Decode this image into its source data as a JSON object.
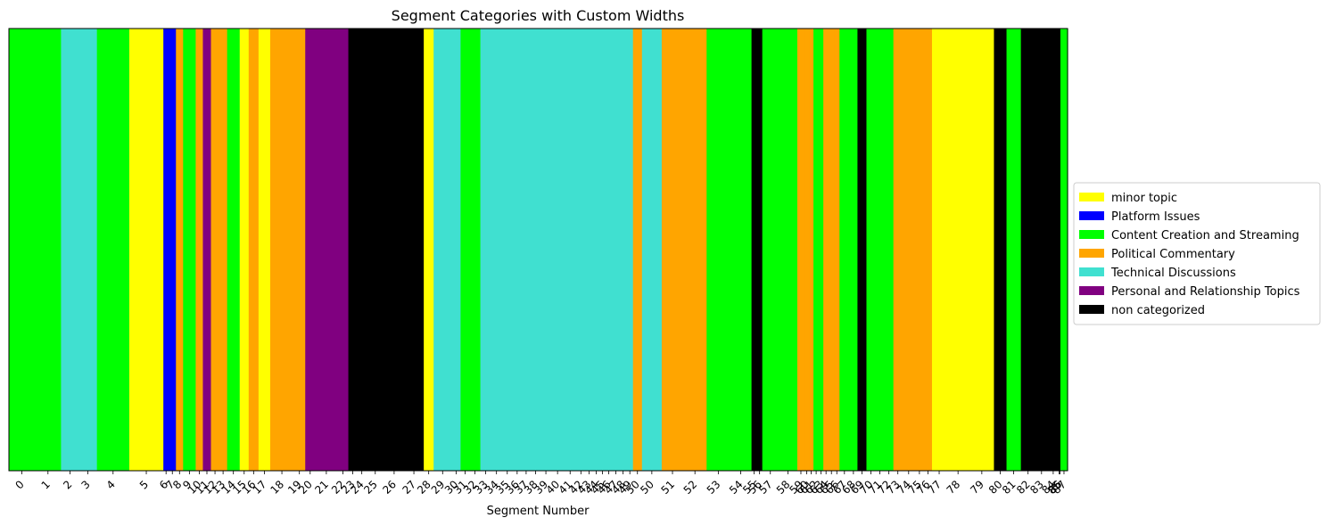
{
  "chart_data": {
    "type": "bar",
    "title": "Segment Categories with Custom Widths",
    "xlabel": "Segment Number",
    "ylabel": "",
    "legend_placement": "center-right outside",
    "grid": false,
    "categories": [
      {
        "name": "minor topic",
        "color": "#ffff00"
      },
      {
        "name": "Platform Issues",
        "color": "#0000ff"
      },
      {
        "name": "Content Creation and Streaming",
        "color": "#00ff00"
      },
      {
        "name": "Political Commentary",
        "color": "#ffa500"
      },
      {
        "name": "Technical Discussions",
        "color": "#40e0d0"
      },
      {
        "name": "Personal and Relationship Topics",
        "color": "#800080"
      },
      {
        "name": "non categorized",
        "color": "#000000"
      }
    ],
    "segments": [
      {
        "label": "0",
        "category": "Content Creation and Streaming",
        "width": 29
      },
      {
        "label": "1",
        "category": "Content Creation and Streaming",
        "width": 29
      },
      {
        "label": "2",
        "category": "Technical Discussions",
        "width": 20
      },
      {
        "label": "3",
        "category": "Technical Discussions",
        "width": 20
      },
      {
        "label": "4",
        "category": "Content Creation and Streaming",
        "width": 36
      },
      {
        "label": "5",
        "category": "minor topic",
        "width": 38
      },
      {
        "label": "6",
        "category": "Platform Issues",
        "width": 6
      },
      {
        "label": "7",
        "category": "Platform Issues",
        "width": 8
      },
      {
        "label": "8",
        "category": "Political Commentary",
        "width": 8
      },
      {
        "label": "9",
        "category": "Content Creation and Streaming",
        "width": 14
      },
      {
        "label": "10",
        "category": "Political Commentary",
        "width": 8
      },
      {
        "label": "11",
        "category": "Personal and Relationship Topics",
        "width": 9
      },
      {
        "label": "12",
        "category": "Political Commentary",
        "width": 9
      },
      {
        "label": "13",
        "category": "Political Commentary",
        "width": 9
      },
      {
        "label": "14",
        "category": "Content Creation and Streaming",
        "width": 14
      },
      {
        "label": "15",
        "category": "minor topic",
        "width": 10
      },
      {
        "label": "16",
        "category": "Political Commentary",
        "width": 11
      },
      {
        "label": "17",
        "category": "minor topic",
        "width": 13
      },
      {
        "label": "18",
        "category": "Political Commentary",
        "width": 26
      },
      {
        "label": "19",
        "category": "Political Commentary",
        "width": 13
      },
      {
        "label": "20",
        "category": "Personal and Relationship Topics",
        "width": 11
      },
      {
        "label": "21",
        "category": "Personal and Relationship Topics",
        "width": 25
      },
      {
        "label": "22",
        "category": "Personal and Relationship Topics",
        "width": 12
      },
      {
        "label": "23",
        "category": "non categorized",
        "width": 10
      },
      {
        "label": "24",
        "category": "non categorized",
        "width": 10
      },
      {
        "label": "25",
        "category": "non categorized",
        "width": 20
      },
      {
        "label": "26",
        "category": "non categorized",
        "width": 22
      },
      {
        "label": "27",
        "category": "non categorized",
        "width": 22
      },
      {
        "label": "28",
        "category": "minor topic",
        "width": 11
      },
      {
        "label": "29",
        "category": "Technical Discussions",
        "width": 20
      },
      {
        "label": "30",
        "category": "Technical Discussions",
        "width": 10
      },
      {
        "label": "31",
        "category": "Content Creation and Streaming",
        "width": 10
      },
      {
        "label": "32",
        "category": "Content Creation and Streaming",
        "width": 12
      },
      {
        "label": "33",
        "category": "Technical Discussions",
        "width": 12
      },
      {
        "label": "34",
        "category": "Technical Discussions",
        "width": 12
      },
      {
        "label": "35",
        "category": "Technical Discussions",
        "width": 12
      },
      {
        "label": "36",
        "category": "Technical Discussions",
        "width": 10
      },
      {
        "label": "37",
        "category": "Technical Discussions",
        "width": 10
      },
      {
        "label": "38",
        "category": "Technical Discussions",
        "width": 11
      },
      {
        "label": "39",
        "category": "Technical Discussions",
        "width": 12
      },
      {
        "label": "40",
        "category": "Technical Discussions",
        "width": 14
      },
      {
        "label": "41",
        "category": "Technical Discussions",
        "width": 14
      },
      {
        "label": "42",
        "category": "Technical Discussions",
        "width": 10
      },
      {
        "label": "43",
        "category": "Technical Discussions",
        "width": 8
      },
      {
        "label": "44",
        "category": "Technical Discussions",
        "width": 8
      },
      {
        "label": "45",
        "category": "Technical Discussions",
        "width": 6
      },
      {
        "label": "46",
        "category": "Technical Discussions",
        "width": 8
      },
      {
        "label": "47",
        "category": "Technical Discussions",
        "width": 8
      },
      {
        "label": "48",
        "category": "Technical Discussions",
        "width": 8
      },
      {
        "label": "49",
        "category": "Technical Discussions",
        "width": 7
      },
      {
        "label": "50",
        "category": "Political Commentary",
        "width": 10
      },
      {
        "label": "50",
        "category": "Technical Discussions",
        "width": 22
      },
      {
        "label": "51",
        "category": "Political Commentary",
        "width": 24
      },
      {
        "label": "52",
        "category": "Political Commentary",
        "width": 26
      },
      {
        "label": "53",
        "category": "Content Creation and Streaming",
        "width": 26
      },
      {
        "label": "54",
        "category": "Content Creation and Streaming",
        "width": 24
      },
      {
        "label": "55",
        "category": "non categorized",
        "width": 6
      },
      {
        "label": "56",
        "category": "non categorized",
        "width": 6
      },
      {
        "label": "57",
        "category": "Content Creation and Streaming",
        "width": 18
      },
      {
        "label": "58",
        "category": "Content Creation and Streaming",
        "width": 21
      },
      {
        "label": "59",
        "category": "Political Commentary",
        "width": 8
      },
      {
        "label": "60",
        "category": "Political Commentary",
        "width": 5
      },
      {
        "label": "61",
        "category": "Political Commentary",
        "width": 5
      },
      {
        "label": "62",
        "category": "Content Creation and Streaming",
        "width": 6
      },
      {
        "label": "63",
        "category": "Content Creation and Streaming",
        "width": 5
      },
      {
        "label": "64",
        "category": "Political Commentary",
        "width": 6
      },
      {
        "label": "65",
        "category": "Political Commentary",
        "width": 6
      },
      {
        "label": "66",
        "category": "Political Commentary",
        "width": 6
      },
      {
        "label": "67",
        "category": "Content Creation and Streaming",
        "width": 11
      },
      {
        "label": "68",
        "category": "Content Creation and Streaming",
        "width": 9
      },
      {
        "label": "69",
        "category": "non categorized",
        "width": 10
      },
      {
        "label": "70",
        "category": "Content Creation and Streaming",
        "width": 10
      },
      {
        "label": "71",
        "category": "Content Creation and Streaming",
        "width": 10
      },
      {
        "label": "72",
        "category": "Content Creation and Streaming",
        "width": 10
      },
      {
        "label": "73",
        "category": "Political Commentary",
        "width": 10
      },
      {
        "label": "74",
        "category": "Political Commentary",
        "width": 14
      },
      {
        "label": "75",
        "category": "Political Commentary",
        "width": 10
      },
      {
        "label": "76",
        "category": "Political Commentary",
        "width": 9
      },
      {
        "label": "77",
        "category": "minor topic",
        "width": 16
      },
      {
        "label": "78",
        "category": "minor topic",
        "width": 26
      },
      {
        "label": "79",
        "category": "minor topic",
        "width": 27
      },
      {
        "label": "80",
        "category": "non categorized",
        "width": 14
      },
      {
        "label": "81",
        "category": "Content Creation and Streaming",
        "width": 16
      },
      {
        "label": "82",
        "category": "non categorized",
        "width": 16
      },
      {
        "label": "83",
        "category": "non categorized",
        "width": 14
      },
      {
        "label": "84",
        "category": "non categorized",
        "width": 12
      },
      {
        "label": "85",
        "category": "non categorized",
        "width": 1
      },
      {
        "label": "86",
        "category": "non categorized",
        "width": 1
      },
      {
        "label": "87",
        "category": "Content Creation and Streaming",
        "width": 8
      }
    ]
  }
}
